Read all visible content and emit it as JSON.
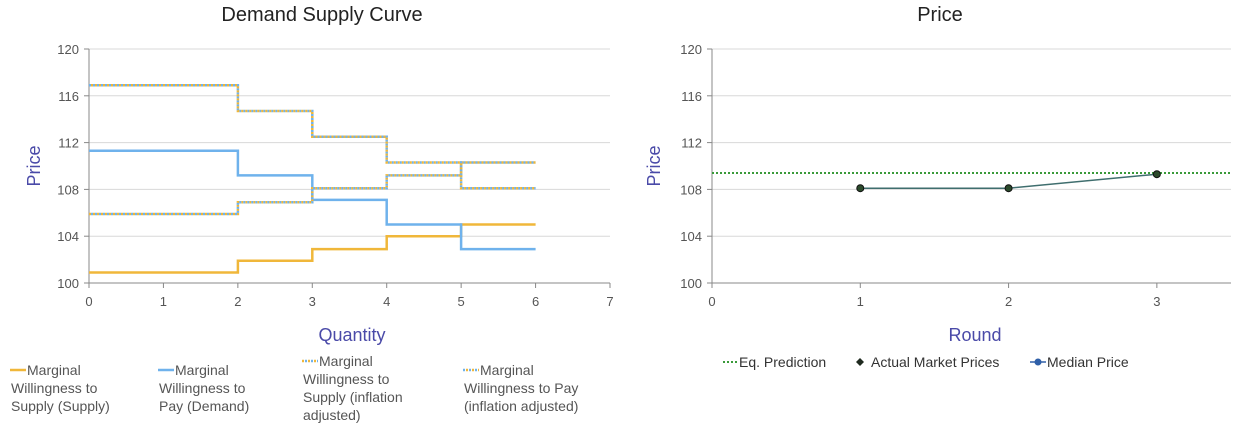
{
  "charts": {
    "left": {
      "title": "Demand Supply Curve",
      "xlabel": "Quantity",
      "ylabel": "Price",
      "x_ticks": [
        "0",
        "1",
        "2",
        "3",
        "4",
        "5",
        "6",
        "7"
      ],
      "y_ticks": [
        "100",
        "104",
        "108",
        "112",
        "116",
        "120"
      ]
    },
    "right": {
      "title": "Price",
      "xlabel": "Round",
      "ylabel": "Price",
      "x_ticks": [
        "0",
        "1",
        "2",
        "3"
      ],
      "y_ticks": [
        "100",
        "104",
        "108",
        "112",
        "116",
        "120"
      ]
    }
  },
  "legend_left": [
    {
      "lines": [
        "Marginal",
        "Willingness to",
        "Supply (Supply)"
      ]
    },
    {
      "lines": [
        "Marginal",
        "Willingness to",
        "Pay (Demand)"
      ]
    },
    {
      "lines": [
        "Marginal",
        "Willingness to",
        "Supply (inflation",
        "adjusted)"
      ]
    },
    {
      "lines": [
        "Marginal",
        "Willingness to Pay",
        "(inflation adjusted)"
      ]
    }
  ],
  "legend_right": [
    "Eq. Prediction",
    "Actual Market Prices",
    "Median Price"
  ],
  "colors": {
    "supply": "#f0b73a",
    "demand": "#6fb2ec",
    "eq": "#3a9a3a",
    "actual_line": "#3f6e6e",
    "actual_dot": "#2b4a2b",
    "median": "#2f5fa8",
    "grid": "#d8d8d8",
    "axis": "#888888"
  },
  "chart_data": [
    {
      "type": "line",
      "title": "Demand Supply Curve",
      "xlabel": "Quantity",
      "ylabel": "Price",
      "xlim": [
        0,
        7
      ],
      "ylim": [
        100,
        120
      ],
      "step": true,
      "series": [
        {
          "name": "Marginal Willingness to Supply (Supply)",
          "x": [
            0,
            2,
            2,
            3,
            3,
            4,
            4,
            5,
            5,
            6
          ],
          "y": [
            100.9,
            100.9,
            101.9,
            101.9,
            102.9,
            102.9,
            104.0,
            104.0,
            105.0,
            105.0
          ]
        },
        {
          "name": "Marginal Willingness to Pay (Demand)",
          "x": [
            0,
            2,
            2,
            3,
            3,
            4,
            4,
            5,
            5,
            6
          ],
          "y": [
            111.3,
            111.3,
            109.2,
            109.2,
            107.1,
            107.1,
            105.0,
            105.0,
            102.9,
            102.9
          ]
        },
        {
          "name": "Marginal Willingness to Supply (inflation adjusted)",
          "x": [
            0,
            2,
            2,
            3,
            3,
            4,
            4,
            5,
            5,
            6
          ],
          "y": [
            105.9,
            105.9,
            106.9,
            106.9,
            108.1,
            108.1,
            109.2,
            109.2,
            110.3,
            110.3
          ]
        },
        {
          "name": "Marginal Willingness to Pay (inflation adjusted)",
          "x": [
            0,
            2,
            2,
            3,
            3,
            4,
            4,
            5,
            5,
            6
          ],
          "y": [
            116.9,
            116.9,
            114.7,
            114.7,
            112.5,
            112.5,
            110.3,
            110.3,
            108.1,
            108.1
          ]
        }
      ]
    },
    {
      "type": "line",
      "title": "Price",
      "xlabel": "Round",
      "ylabel": "Price",
      "xlim": [
        0,
        3.5
      ],
      "ylim": [
        100,
        120
      ],
      "series": [
        {
          "name": "Eq. Prediction",
          "y_constant": 109.4
        },
        {
          "name": "Actual Market Prices",
          "x": [
            1,
            2,
            3
          ],
          "y": [
            108.1,
            108.1,
            109.3
          ]
        },
        {
          "name": "Median Price",
          "x": [
            1,
            2,
            3
          ],
          "y": [
            108.1,
            108.1,
            109.3
          ]
        }
      ]
    }
  ]
}
